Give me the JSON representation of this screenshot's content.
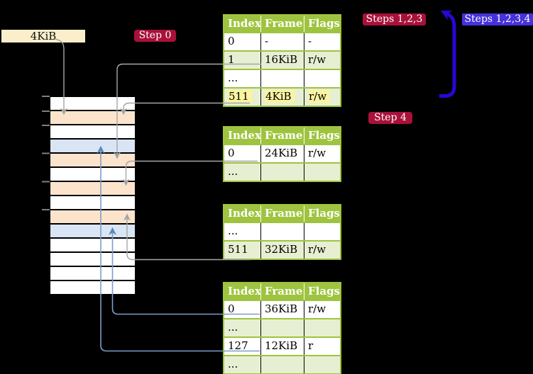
{
  "labels": {
    "page_size": "4KiB"
  },
  "badges": {
    "step0": "Step 0",
    "steps123": "Steps 1,2,3",
    "steps1234": "Steps 1,2,3,4",
    "step4": "Step 4"
  },
  "tables": [
    {
      "name": "page-table-top",
      "headers": [
        "Index",
        "Frame",
        "Flags"
      ],
      "rows": [
        {
          "cells": [
            "0",
            "-",
            "-"
          ]
        },
        {
          "cells": [
            "1",
            "16KiB",
            "r/w"
          ]
        },
        {
          "cells": [
            "...",
            "",
            ""
          ]
        },
        {
          "cells": [
            "511",
            "4KiB",
            "r/w"
          ],
          "highlighted": true
        }
      ]
    },
    {
      "name": "page-table-second",
      "headers": [
        "Index",
        "Frame",
        "Flags"
      ],
      "rows": [
        {
          "cells": [
            "0",
            "24KiB",
            "r/w"
          ]
        },
        {
          "cells": [
            "...",
            "",
            ""
          ]
        }
      ]
    },
    {
      "name": "page-table-third",
      "headers": [
        "Index",
        "Frame",
        "Flags"
      ],
      "rows": [
        {
          "cells": [
            "...",
            "",
            ""
          ]
        },
        {
          "cells": [
            "511",
            "32KiB",
            "r/w"
          ]
        }
      ]
    },
    {
      "name": "page-table-bottom",
      "headers": [
        "Index",
        "Frame",
        "Flags"
      ],
      "rows": [
        {
          "cells": [
            "0",
            "36KiB",
            "r/w"
          ]
        },
        {
          "cells": [
            "...",
            "",
            ""
          ]
        },
        {
          "cells": [
            "127",
            "12KiB",
            "r"
          ]
        },
        {
          "cells": [
            "...",
            "",
            ""
          ]
        }
      ]
    }
  ],
  "memory_column": {
    "rows": [
      "white",
      "peach",
      "white",
      "blue",
      "peach",
      "white",
      "peach",
      "white",
      "peach",
      "blue",
      "white",
      "white",
      "white",
      "white"
    ]
  },
  "colors": {
    "background": "#000000",
    "badge_red": "#A8113A",
    "badge_blue": "#4632DB",
    "big_arrow_blue": "#2807D6",
    "table_header_green": "#9EC43F",
    "table_alt_row_green": "#E7EFD2",
    "highlight_yellow": "#FAF4A1",
    "frame_peach": "#FCE4CC",
    "frame_light_blue": "#D9E5F5",
    "connector_gray": "#A6A6A6",
    "connector_steel_blue": "#7E9CC8",
    "size_label_beige": "#FBEFCB"
  }
}
